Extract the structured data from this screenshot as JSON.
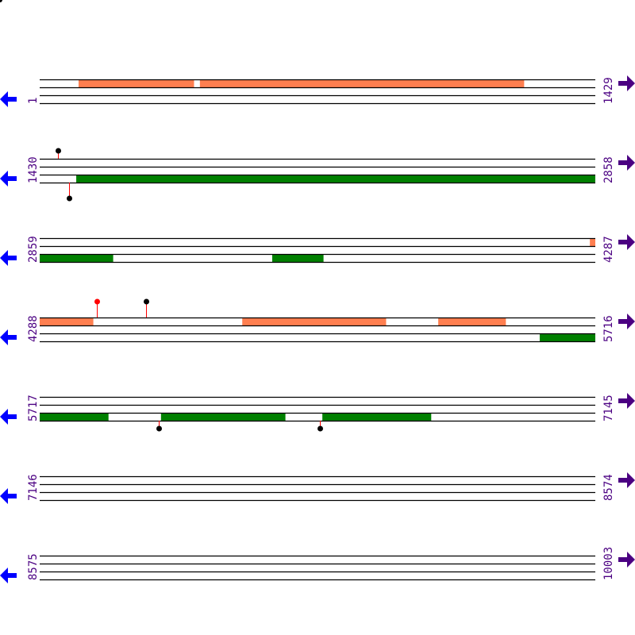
{
  "bp_per_row": 1429,
  "colors": {
    "orange": "#ff7f50",
    "green": "#008000",
    "line": "#000000",
    "label": "#4b0082",
    "left_arrow": "#0000ff",
    "right_arrow": "#4b0082",
    "stem": "#ff0000"
  },
  "rows": [
    {
      "start": "1",
      "end": "1429",
      "features": [
        {
          "track": 0,
          "from": 101,
          "to": 397,
          "color": "orange"
        },
        {
          "track": 0,
          "from": 413,
          "to": 1246,
          "color": "orange"
        }
      ],
      "markers": []
    },
    {
      "start": "1430",
      "end": "2858",
      "features": [
        {
          "track": 2,
          "from": 1524,
          "to": 2858,
          "color": "green"
        }
      ],
      "markers": [
        {
          "pos": 1477,
          "side": "top",
          "stem": 10,
          "head": "black"
        },
        {
          "pos": 1505,
          "side": "bottom",
          "stem": 20,
          "head": "black"
        }
      ]
    },
    {
      "start": "2859",
      "end": "4287",
      "features": [
        {
          "track": 0,
          "from": 4274,
          "to": 4287,
          "color": "orange"
        },
        {
          "track": 2,
          "from": 2859,
          "to": 3047,
          "color": "green"
        },
        {
          "track": 2,
          "from": 3457,
          "to": 3588,
          "color": "green"
        }
      ],
      "markers": []
    },
    {
      "start": "4288",
      "end": "5716",
      "features": [
        {
          "track": 0,
          "from": 4288,
          "to": 4425,
          "color": "orange"
        },
        {
          "track": 0,
          "from": 4809,
          "to": 5178,
          "color": "orange"
        },
        {
          "track": 0,
          "from": 5313,
          "to": 5486,
          "color": "orange"
        },
        {
          "track": 2,
          "from": 5574,
          "to": 5716,
          "color": "green"
        }
      ],
      "markers": [
        {
          "pos": 4435,
          "side": "top",
          "stem": 20,
          "head": "red"
        },
        {
          "pos": 4562,
          "side": "top",
          "stem": 20,
          "head": "black"
        }
      ]
    },
    {
      "start": "5717",
      "end": "7145",
      "features": [
        {
          "track": 2,
          "from": 5717,
          "to": 5893,
          "color": "green"
        },
        {
          "track": 2,
          "from": 6029,
          "to": 6348,
          "color": "green"
        },
        {
          "track": 2,
          "from": 6444,
          "to": 6723,
          "color": "green"
        }
      ],
      "markers": [
        {
          "pos": 6023,
          "side": "bottom",
          "stem": 10,
          "head": "black"
        },
        {
          "pos": 6438,
          "side": "bottom",
          "stem": 10,
          "head": "black"
        }
      ]
    },
    {
      "start": "7146",
      "end": "8574",
      "features": [],
      "markers": []
    },
    {
      "start": "8575",
      "end": "10003",
      "features": [],
      "markers": []
    }
  ]
}
